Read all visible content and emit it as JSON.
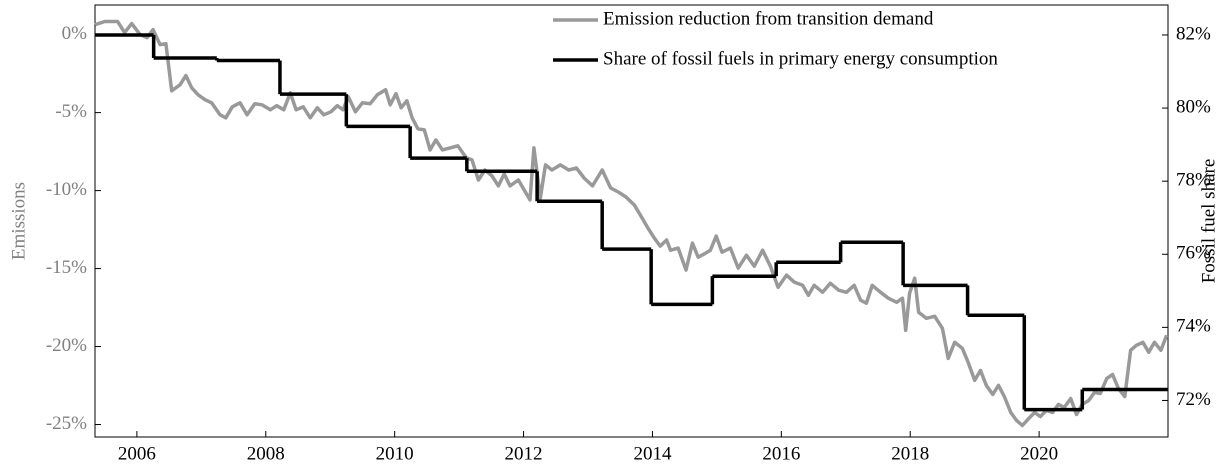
{
  "chart_data": {
    "type": "line",
    "y_label": "Emissions",
    "y2_label": "Fossil fuel share",
    "xlim": [
      2005.35,
      2022.0
    ],
    "xticks": [
      2006,
      2008,
      2010,
      2012,
      2014,
      2016,
      2018,
      2020
    ],
    "ylim": [
      -25.8,
      1.9
    ],
    "yticks": [
      {
        "value": 0,
        "label": "0%"
      },
      {
        "value": -5,
        "label": "-5%"
      },
      {
        "value": -10,
        "label": "-10%"
      },
      {
        "value": -15,
        "label": "-15%"
      },
      {
        "value": -20,
        "label": "-20%"
      },
      {
        "value": -25,
        "label": "-25%"
      }
    ],
    "y2lim": [
      71.0,
      82.82
    ],
    "y2ticks": [
      {
        "value": 82,
        "label": "82%"
      },
      {
        "value": 80,
        "label": "80%"
      },
      {
        "value": 78,
        "label": "78%"
      },
      {
        "value": 76,
        "label": "76%"
      },
      {
        "value": 74,
        "label": "74%"
      },
      {
        "value": 72,
        "label": "72%"
      }
    ],
    "legend": "upper right",
    "series": [
      {
        "name": "Emission reduction from transition demand",
        "color": "#999999",
        "axis": "y",
        "x": [
          2005.35,
          2005.5,
          2005.7,
          2005.81,
          2005.92,
          2006.05,
          2006.16,
          2006.25,
          2006.36,
          2006.45,
          2006.54,
          2006.67,
          2006.76,
          2006.85,
          2006.95,
          2007.06,
          2007.16,
          2007.29,
          2007.38,
          2007.48,
          2007.6,
          2007.71,
          2007.83,
          2007.94,
          2008.07,
          2008.17,
          2008.28,
          2008.38,
          2008.47,
          2008.58,
          2008.69,
          2008.8,
          2008.9,
          2009.01,
          2009.11,
          2009.2,
          2009.28,
          2009.39,
          2009.5,
          2009.62,
          2009.73,
          2009.86,
          2009.93,
          2010.02,
          2010.1,
          2010.19,
          2010.27,
          2010.36,
          2010.46,
          2010.55,
          2010.64,
          2010.74,
          2010.86,
          2010.98,
          2011.11,
          2011.2,
          2011.3,
          2011.4,
          2011.51,
          2011.61,
          2011.7,
          2011.79,
          2011.92,
          2012.01,
          2012.1,
          2012.16,
          2012.26,
          2012.34,
          2012.44,
          2012.57,
          2012.7,
          2012.82,
          2012.94,
          2013.07,
          2013.22,
          2013.35,
          2013.47,
          2013.59,
          2013.72,
          2013.84,
          2013.93,
          2014.03,
          2014.12,
          2014.22,
          2014.28,
          2014.4,
          2014.52,
          2014.62,
          2014.71,
          2014.8,
          2014.9,
          2014.99,
          2015.08,
          2015.21,
          2015.33,
          2015.46,
          2015.58,
          2015.71,
          2015.83,
          2015.95,
          2016.08,
          2016.2,
          2016.33,
          2016.42,
          2016.51,
          2016.64,
          2016.76,
          2016.89,
          2017.01,
          2017.13,
          2017.23,
          2017.32,
          2017.41,
          2017.54,
          2017.66,
          2017.79,
          2017.88,
          2017.93,
          2017.99,
          2018.07,
          2018.13,
          2018.25,
          2018.38,
          2018.5,
          2018.59,
          2018.69,
          2018.81,
          2018.9,
          2019.0,
          2019.09,
          2019.18,
          2019.28,
          2019.37,
          2019.46,
          2019.56,
          2019.65,
          2019.74,
          2019.84,
          2019.93,
          2020.02,
          2020.11,
          2020.21,
          2020.3,
          2020.39,
          2020.49,
          2020.58,
          2020.67,
          2020.77,
          2020.86,
          2020.95,
          2021.05,
          2021.14,
          2021.23,
          2021.33,
          2021.42,
          2021.51,
          2021.61,
          2021.7,
          2021.79,
          2021.89,
          2021.98
        ],
        "values": [
          0.64,
          0.84,
          0.84,
          0.13,
          0.71,
          0,
          -0.19,
          0.32,
          -0.64,
          -0.58,
          -3.6,
          -3.21,
          -2.63,
          -3.41,
          -3.86,
          -4.18,
          -4.37,
          -5.14,
          -5.33,
          -4.63,
          -4.37,
          -5.14,
          -4.43,
          -4.5,
          -4.82,
          -4.56,
          -4.82,
          -3.73,
          -4.82,
          -4.63,
          -5.33,
          -4.69,
          -5.14,
          -4.95,
          -4.56,
          -4.82,
          -3.98,
          -4.95,
          -4.37,
          -4.43,
          -3.86,
          -3.53,
          -4.5,
          -3.79,
          -4.69,
          -4.24,
          -5.33,
          -6.04,
          -6.11,
          -7.39,
          -6.75,
          -7.39,
          -7.26,
          -7.13,
          -7.9,
          -8.03,
          -9.32,
          -8.68,
          -9.06,
          -9.7,
          -8.93,
          -9.7,
          -9.32,
          -9.96,
          -10.6,
          -7.26,
          -10.48,
          -8.35,
          -8.68,
          -8.35,
          -8.68,
          -8.55,
          -9.19,
          -9.7,
          -8.68,
          -9.83,
          -10.09,
          -10.41,
          -10.93,
          -11.76,
          -12.4,
          -13.05,
          -13.56,
          -13.17,
          -13.82,
          -13.69,
          -15.1,
          -13.37,
          -14.27,
          -14.07,
          -13.82,
          -12.92,
          -13.95,
          -13.69,
          -14.97,
          -14.14,
          -14.85,
          -13.82,
          -14.85,
          -16.2,
          -15.42,
          -15.87,
          -16.07,
          -16.71,
          -16.07,
          -16.52,
          -15.94,
          -16.39,
          -16.52,
          -16.07,
          -17.03,
          -17.22,
          -16.07,
          -16.52,
          -16.9,
          -17.16,
          -16.9,
          -18.96,
          -16.58,
          -15.62,
          -17.8,
          -18.19,
          -18.06,
          -18.83,
          -20.76,
          -19.73,
          -20.12,
          -21.02,
          -22.17,
          -21.53,
          -22.49,
          -23.07,
          -22.49,
          -23.2,
          -24.23,
          -24.74,
          -25.06,
          -24.61,
          -24.23,
          -24.49,
          -24.1,
          -24.23,
          -23.71,
          -23.91,
          -23.33,
          -24.36,
          -23.71,
          -23.46,
          -22.94,
          -23.01,
          -22.04,
          -21.79,
          -22.69,
          -23.2,
          -20.24,
          -19.92,
          -19.73,
          -20.37,
          -19.73,
          -20.24,
          -19.28
        ]
      },
      {
        "name": "Share of fossil fuels in primary energy consumption",
        "color": "#000000",
        "axis": "y2",
        "step": true,
        "x": [
          2005.35,
          2006.26,
          2007.24,
          2008.22,
          2009.25,
          2010.24,
          2011.12,
          2012.21,
          2013.22,
          2013.98,
          2014.93,
          2015.92,
          2016.92,
          2017.89,
          2018.89,
          2019.77,
          2020.67
        ],
        "values": [
          82.0,
          81.37,
          81.3,
          80.38,
          79.5,
          78.63,
          78.27,
          77.45,
          76.14,
          74.63,
          75.4,
          75.78,
          76.33,
          75.15,
          74.33,
          71.75,
          72.3
        ]
      }
    ]
  }
}
